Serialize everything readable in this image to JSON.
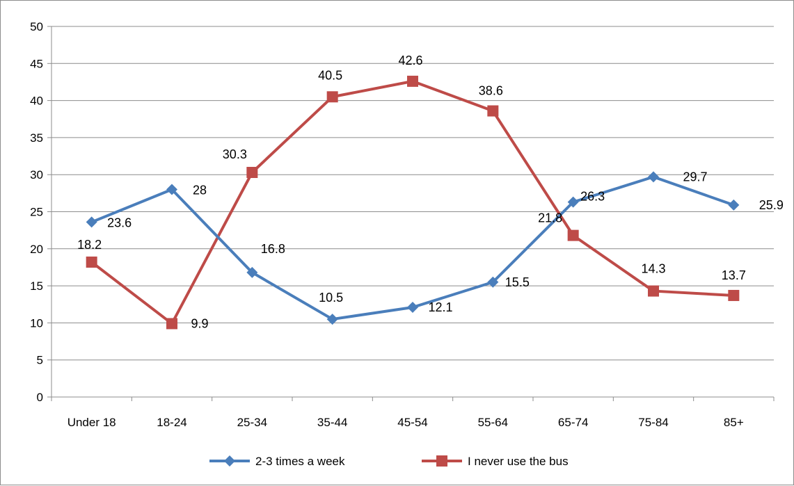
{
  "chart_data": {
    "type": "line",
    "categories": [
      "Under 18",
      "18-24",
      "25-34",
      "35-44",
      "45-54",
      "55-64",
      "65-74",
      "75-84",
      "85+"
    ],
    "series": [
      {
        "name": "2-3 times a week",
        "values": [
          23.6,
          28,
          16.8,
          10.5,
          12.1,
          15.5,
          26.3,
          29.7,
          25.9
        ],
        "color": "#4a7ebb",
        "marker": "diamond"
      },
      {
        "name": "I never use the bus",
        "values": [
          18.2,
          9.9,
          30.3,
          40.5,
          42.6,
          38.6,
          21.8,
          14.3,
          13.7
        ],
        "color": "#be4b48",
        "marker": "square"
      }
    ],
    "ylim": [
      0,
      50
    ],
    "yticks": [
      0,
      5,
      10,
      15,
      20,
      25,
      30,
      35,
      40,
      45,
      50
    ],
    "grid": true,
    "legend": "bottom",
    "title": "",
    "xlabel": "",
    "ylabel": ""
  }
}
